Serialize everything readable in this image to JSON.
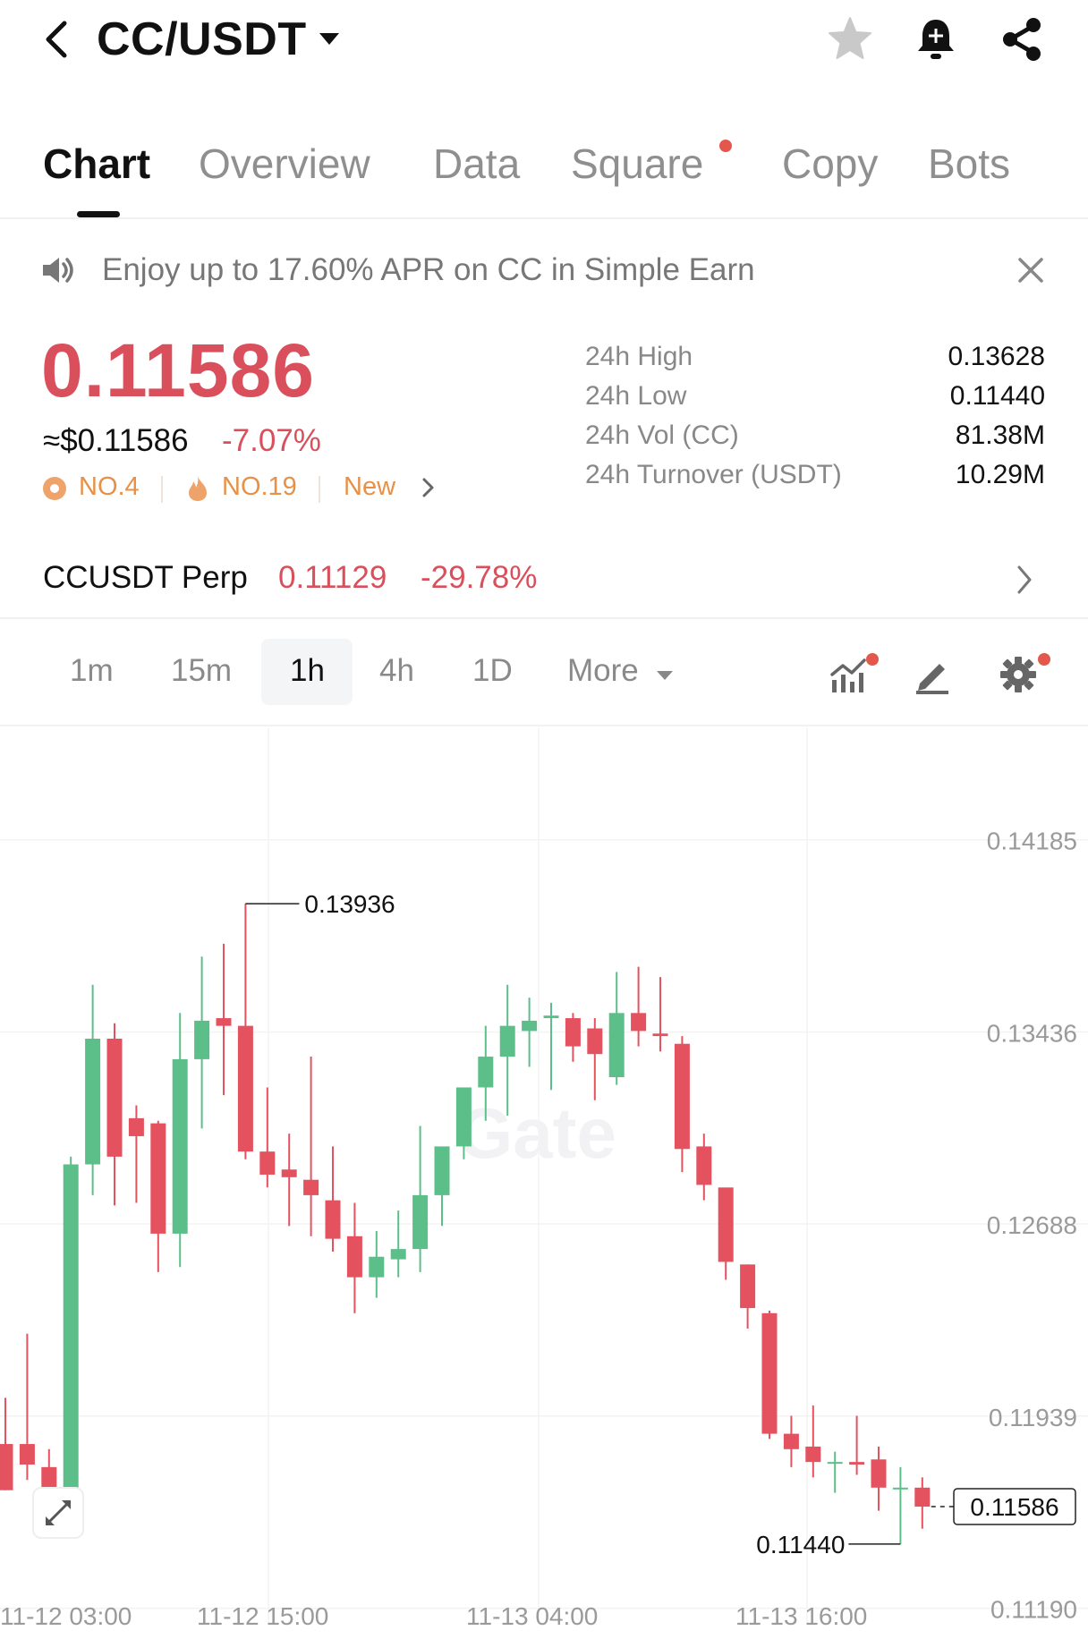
{
  "header": {
    "pair": "CC/USDT",
    "icons": [
      "back-arrow-icon",
      "star-icon",
      "bell-plus-icon",
      "share-icon"
    ]
  },
  "tabs": [
    {
      "label": "Chart",
      "active": true
    },
    {
      "label": "Overview"
    },
    {
      "label": "Data"
    },
    {
      "label": "Square",
      "dot": true
    },
    {
      "label": "Copy"
    },
    {
      "label": "Bots"
    }
  ],
  "banner": {
    "text": "Enjoy up to 17.60% APR on CC in Simple Earn"
  },
  "ticker": {
    "price": "0.11586",
    "usd": "≈$0.11586",
    "change": "-7.07%",
    "rank1": "NO.4",
    "rank2": "NO.19",
    "rank3": "New"
  },
  "stats": [
    {
      "label": "24h High",
      "value": "0.13628"
    },
    {
      "label": "24h Low",
      "value": "0.11440"
    },
    {
      "label": "24h Vol (CC)",
      "value": "81.38M"
    },
    {
      "label": "24h Turnover (USDT)",
      "value": "10.29M"
    }
  ],
  "perp": {
    "name": "CCUSDT Perp",
    "price": "0.11129",
    "change": "-29.78%"
  },
  "intervals": [
    "1m",
    "15m",
    "1h",
    "4h",
    "1D",
    "More"
  ],
  "active_interval": "1h",
  "colors": {
    "up": "#5cbf8a",
    "down": "#e5525f",
    "price_red": "#d9505c",
    "accent_orange": "#e89146"
  },
  "chart_data": {
    "type": "candlestick",
    "watermark": "Gate",
    "y_ticks": [
      "0.14185",
      "0.13436",
      "0.12688",
      "0.11939",
      "0.11190"
    ],
    "x_ticks": [
      "11-12 03:00",
      "11-12 15:00",
      "11-13 04:00",
      "11-13 16:00"
    ],
    "high_label": "0.13936",
    "low_label": "0.11440",
    "last_price": "0.11586",
    "ylim": [
      0.1107,
      0.1462
    ],
    "candles": [
      {
        "o": 0.1183,
        "h": 0.1201,
        "l": 0.1165,
        "c": 0.1165
      },
      {
        "o": 0.1183,
        "h": 0.1226,
        "l": 0.1169,
        "c": 0.1175
      },
      {
        "o": 0.1174,
        "h": 0.1181,
        "l": 0.1153,
        "c": 0.1154
      },
      {
        "o": 0.1154,
        "h": 0.1295,
        "l": 0.1153,
        "c": 0.1292
      },
      {
        "o": 0.1292,
        "h": 0.1362,
        "l": 0.128,
        "c": 0.1341
      },
      {
        "o": 0.1341,
        "h": 0.1347,
        "l": 0.1276,
        "c": 0.1295
      },
      {
        "o": 0.131,
        "h": 0.1315,
        "l": 0.1277,
        "c": 0.1303
      },
      {
        "o": 0.1308,
        "h": 0.1309,
        "l": 0.125,
        "c": 0.1265
      },
      {
        "o": 0.1265,
        "h": 0.1351,
        "l": 0.1252,
        "c": 0.1333
      },
      {
        "o": 0.1333,
        "h": 0.1373,
        "l": 0.1306,
        "c": 0.1348
      },
      {
        "o": 0.1349,
        "h": 0.1378,
        "l": 0.1319,
        "c": 0.1346
      },
      {
        "o": 0.1346,
        "h": 0.13936,
        "l": 0.1294,
        "c": 0.1297
      },
      {
        "o": 0.1297,
        "h": 0.1322,
        "l": 0.1283,
        "c": 0.1288
      },
      {
        "o": 0.129,
        "h": 0.1304,
        "l": 0.1268,
        "c": 0.1287
      },
      {
        "o": 0.1286,
        "h": 0.1334,
        "l": 0.1264,
        "c": 0.128
      },
      {
        "o": 0.1278,
        "h": 0.1299,
        "l": 0.1258,
        "c": 0.1263
      },
      {
        "o": 0.1264,
        "h": 0.1277,
        "l": 0.1234,
        "c": 0.1248
      },
      {
        "o": 0.1248,
        "h": 0.1266,
        "l": 0.124,
        "c": 0.1256
      },
      {
        "o": 0.1255,
        "h": 0.1274,
        "l": 0.1248,
        "c": 0.1259
      },
      {
        "o": 0.1259,
        "h": 0.1307,
        "l": 0.125,
        "c": 0.128
      },
      {
        "o": 0.128,
        "h": 0.1297,
        "l": 0.1268,
        "c": 0.1299
      },
      {
        "o": 0.1299,
        "h": 0.1321,
        "l": 0.1294,
        "c": 0.1322
      },
      {
        "o": 0.1322,
        "h": 0.1346,
        "l": 0.1309,
        "c": 0.1334
      },
      {
        "o": 0.1334,
        "h": 0.1362,
        "l": 0.1311,
        "c": 0.1346
      },
      {
        "o": 0.1344,
        "h": 0.1357,
        "l": 0.133,
        "c": 0.1348
      },
      {
        "o": 0.1349,
        "h": 0.1355,
        "l": 0.1321,
        "c": 0.135
      },
      {
        "o": 0.1349,
        "h": 0.1351,
        "l": 0.1332,
        "c": 0.1338
      },
      {
        "o": 0.1345,
        "h": 0.1349,
        "l": 0.1317,
        "c": 0.1335
      },
      {
        "o": 0.1326,
        "h": 0.1367,
        "l": 0.1323,
        "c": 0.1351
      },
      {
        "o": 0.1351,
        "h": 0.1369,
        "l": 0.1338,
        "c": 0.1344
      },
      {
        "o": 0.1343,
        "h": 0.1365,
        "l": 0.1336,
        "c": 0.1342
      },
      {
        "o": 0.1339,
        "h": 0.1342,
        "l": 0.1289,
        "c": 0.1298
      },
      {
        "o": 0.1299,
        "h": 0.1304,
        "l": 0.1278,
        "c": 0.1284
      },
      {
        "o": 0.1283,
        "h": 0.1282,
        "l": 0.1247,
        "c": 0.1254
      },
      {
        "o": 0.1253,
        "h": 0.1253,
        "l": 0.1228,
        "c": 0.1236
      },
      {
        "o": 0.1234,
        "h": 0.1235,
        "l": 0.1185,
        "c": 0.1187
      },
      {
        "o": 0.1187,
        "h": 0.1194,
        "l": 0.1174,
        "c": 0.1181
      },
      {
        "o": 0.1182,
        "h": 0.1198,
        "l": 0.117,
        "c": 0.1176
      },
      {
        "o": 0.1176,
        "h": 0.118,
        "l": 0.1164,
        "c": 0.1176
      },
      {
        "o": 0.1176,
        "h": 0.1194,
        "l": 0.1171,
        "c": 0.1175
      },
      {
        "o": 0.1177,
        "h": 0.1182,
        "l": 0.1157,
        "c": 0.1166
      },
      {
        "o": 0.1166,
        "h": 0.1174,
        "l": 0.1144,
        "c": 0.1166
      },
      {
        "o": 0.1166,
        "h": 0.117,
        "l": 0.115,
        "c": 0.11586
      }
    ]
  }
}
